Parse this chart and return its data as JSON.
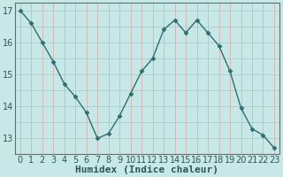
{
  "x": [
    0,
    1,
    2,
    3,
    4,
    5,
    6,
    7,
    8,
    9,
    10,
    11,
    12,
    13,
    14,
    15,
    16,
    17,
    18,
    19,
    20,
    21,
    22,
    23
  ],
  "y": [
    17.0,
    16.6,
    16.0,
    15.4,
    14.7,
    14.3,
    13.8,
    13.0,
    13.15,
    13.7,
    14.4,
    15.1,
    15.5,
    16.4,
    16.7,
    16.3,
    16.7,
    16.3,
    15.9,
    15.1,
    13.95,
    13.3,
    13.1,
    12.7
  ],
  "line_color": "#2e6e6e",
  "marker": "D",
  "markersize": 2.5,
  "bg_color": "#c8e8e8",
  "grid_color_v": "#d8a8a8",
  "grid_color_h": "#a8c8c8",
  "xlabel": "Humidex (Indice chaleur)",
  "ylim": [
    12.5,
    17.25
  ],
  "xlim": [
    -0.5,
    23.5
  ],
  "yticks": [
    13,
    14,
    15,
    16,
    17
  ],
  "xticks": [
    0,
    1,
    2,
    3,
    4,
    5,
    6,
    7,
    8,
    9,
    10,
    11,
    12,
    13,
    14,
    15,
    16,
    17,
    18,
    19,
    20,
    21,
    22,
    23
  ],
  "spine_color": "#607070",
  "tick_color": "#2e5555",
  "label_fontsize": 8,
  "tick_fontsize": 7,
  "title_color": "#2e5555"
}
